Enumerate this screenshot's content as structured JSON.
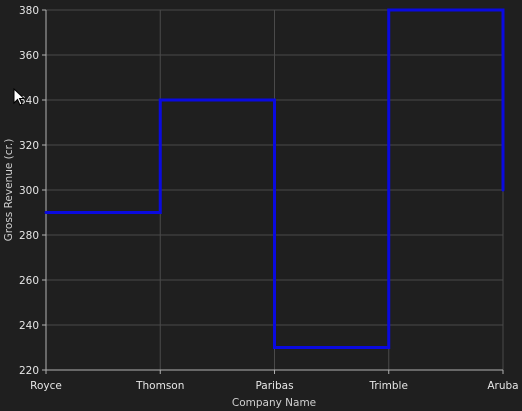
{
  "chart_data": {
    "type": "line",
    "step": true,
    "categories": [
      "Royce",
      "Thomson",
      "Paribas",
      "Trimble",
      "Aruba"
    ],
    "values": [
      290,
      340,
      230,
      380,
      300
    ],
    "xlabel": "Company Name",
    "ylabel": "Gross Revenue (cr.)",
    "ylim": [
      220,
      380
    ],
    "yticks": [
      220,
      240,
      260,
      280,
      300,
      320,
      340,
      360,
      380
    ],
    "grid": true,
    "colors": {
      "series": "#0a0ae0",
      "background": "#1f1f1f",
      "grid": "#4a4a4a",
      "text": "#e6e6e6"
    }
  }
}
